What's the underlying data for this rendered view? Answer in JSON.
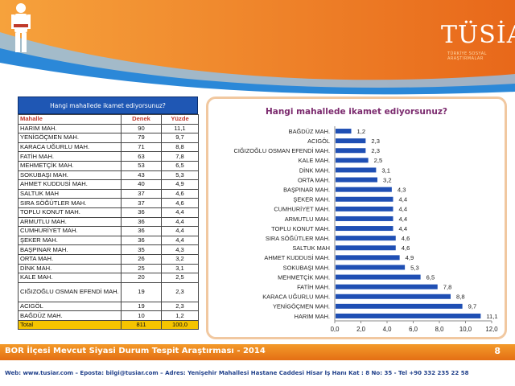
{
  "header": {
    "logo_text": "TÜSİAR",
    "logo_tagline": "TÜRKİYE SOSYAL ARAŞTIRMALAR",
    "accent": "#e8731a",
    "wave": "#2b88d8"
  },
  "table": {
    "title": "Hangi mahallede ikamet ediyorsunuz?",
    "headers": [
      "Mahalle",
      "Denek",
      "Yüzde"
    ],
    "rows": [
      [
        "HARIM MAH.",
        "90",
        "11,1"
      ],
      [
        "YENİGÖÇMEN MAH.",
        "79",
        "9,7"
      ],
      [
        "KARACA UĞURLU MAH.",
        "71",
        "8,8"
      ],
      [
        "FATİH MAH.",
        "63",
        "7,8"
      ],
      [
        "MEHMETÇİK MAH.",
        "53",
        "6,5"
      ],
      [
        "SOKUBAŞI MAH.",
        "43",
        "5,3"
      ],
      [
        "AHMET KUDDUSİ MAH.",
        "40",
        "4,9"
      ],
      [
        "SALTUK MAH",
        "37",
        "4,6"
      ],
      [
        "SIRA SÖĞÜTLER MAH.",
        "37",
        "4,6"
      ],
      [
        "TOPLU KONUT MAH.",
        "36",
        "4,4"
      ],
      [
        "ARMUTLU MAH.",
        "36",
        "4,4"
      ],
      [
        "CUMHURİYET MAH.",
        "36",
        "4,4"
      ],
      [
        "ŞEKER MAH.",
        "36",
        "4,4"
      ],
      [
        "BAŞPINAR MAH.",
        "35",
        "4,3"
      ],
      [
        "ORTA MAH.",
        "26",
        "3,2"
      ],
      [
        "DİNK MAH.",
        "25",
        "3,1"
      ],
      [
        "KALE MAH.",
        "20",
        "2,5"
      ],
      [
        "CIĞIZOĞLU OSMAN EFENDİ MAH.",
        "19",
        "2,3"
      ],
      [
        "ACIGÖL",
        "19",
        "2,3"
      ],
      [
        "BAĞDÜZ MAH.",
        "10",
        "1,2"
      ]
    ],
    "total": [
      "Total",
      "811",
      "100,0"
    ]
  },
  "chart_data": {
    "type": "bar",
    "orientation": "horizontal",
    "title": "Hangi mahallede ikamet ediyorsunuz?",
    "categories": [
      "BAĞDÜZ MAH.",
      "ACIGÖL",
      "CIĞIZOĞLU OSMAN EFENDİ MAH.",
      "KALE MAH.",
      "DİNK MAH.",
      "ORTA MAH.",
      "BAŞPINAR MAH.",
      "ŞEKER MAH.",
      "CUMHURİYET MAH.",
      "ARMUTLU MAH.",
      "TOPLU KONUT MAH.",
      "SIRA SÖĞÜTLER MAH.",
      "SALTUK MAH",
      "AHMET KUDDUSİ MAH.",
      "SOKUBAŞI MAH.",
      "MEHMETÇİK MAH.",
      "FATİH MAH.",
      "KARACA UĞURLU MAH.",
      "YENİGÖÇMEN MAH.",
      "HARIM MAH."
    ],
    "values": [
      1.2,
      2.3,
      2.3,
      2.5,
      3.1,
      3.2,
      4.3,
      4.4,
      4.4,
      4.4,
      4.4,
      4.6,
      4.6,
      4.9,
      5.3,
      6.5,
      7.8,
      8.8,
      9.7,
      11.1
    ],
    "value_labels": [
      "1,2",
      "2,3",
      "2,3",
      "2,5",
      "3,1",
      "3,2",
      "4,3",
      "4,4",
      "4,4",
      "4,4",
      "4,4",
      "4,6",
      "4,6",
      "4,9",
      "5,3",
      "6,5",
      "7,8",
      "8,8",
      "9,7",
      "11,1"
    ],
    "xlim": [
      0,
      12
    ],
    "xticks": [
      0,
      2,
      4,
      6,
      8,
      10,
      12
    ],
    "xtick_labels": [
      "0,0",
      "2,0",
      "4,0",
      "6,0",
      "8,0",
      "10,0",
      "12,0"
    ],
    "grid": false,
    "bar_color": "#1f4fb4",
    "title_color": "#7b2a6e"
  },
  "footer": {
    "title": "BOR İlçesi Mevcut Siyasi Durum Tespit Araştırması - 2014",
    "page": "8",
    "contact": "Web: www.tusiar.com  –  Eposta: bilgi@tusiar.com  –  Adres: Yenişehir Mahallesi Hastane Caddesi Hisar İş Hanı Kat : 8 No: 35  - Tel +90 332 235 22 58"
  }
}
